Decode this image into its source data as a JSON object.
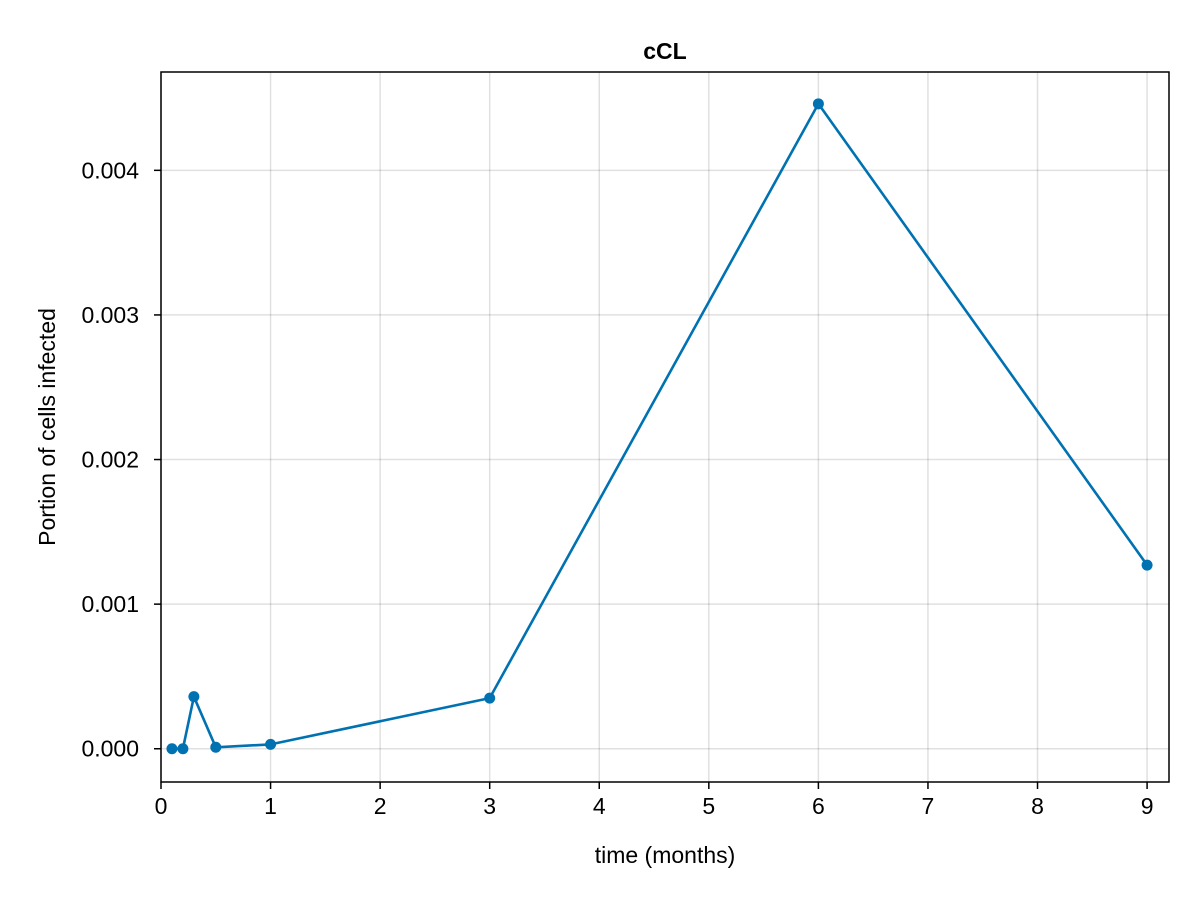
{
  "chart_data": {
    "type": "line",
    "title": "cCL",
    "xlabel": "time (months)",
    "ylabel": "Portion of cells infected",
    "xlim": [
      0,
      9.2
    ],
    "ylim": [
      -0.00023,
      0.00468
    ],
    "x_ticks": [
      0,
      1,
      2,
      3,
      4,
      5,
      6,
      7,
      8,
      9
    ],
    "x_tick_labels": [
      "0",
      "1",
      "2",
      "3",
      "4",
      "5",
      "6",
      "7",
      "8",
      "9"
    ],
    "y_ticks": [
      0.0,
      0.001,
      0.002,
      0.003,
      0.004
    ],
    "y_tick_labels": [
      "0.000",
      "0.001",
      "0.002",
      "0.003",
      "0.004"
    ],
    "grid": true,
    "series": [
      {
        "color": "#0072b2",
        "x": [
          0.1,
          0.2,
          0.3,
          0.5,
          1,
          3,
          6,
          9
        ],
        "y": [
          0.0,
          0.0,
          0.00036,
          1e-05,
          3e-05,
          0.00035,
          0.00446,
          0.00127
        ]
      }
    ]
  }
}
